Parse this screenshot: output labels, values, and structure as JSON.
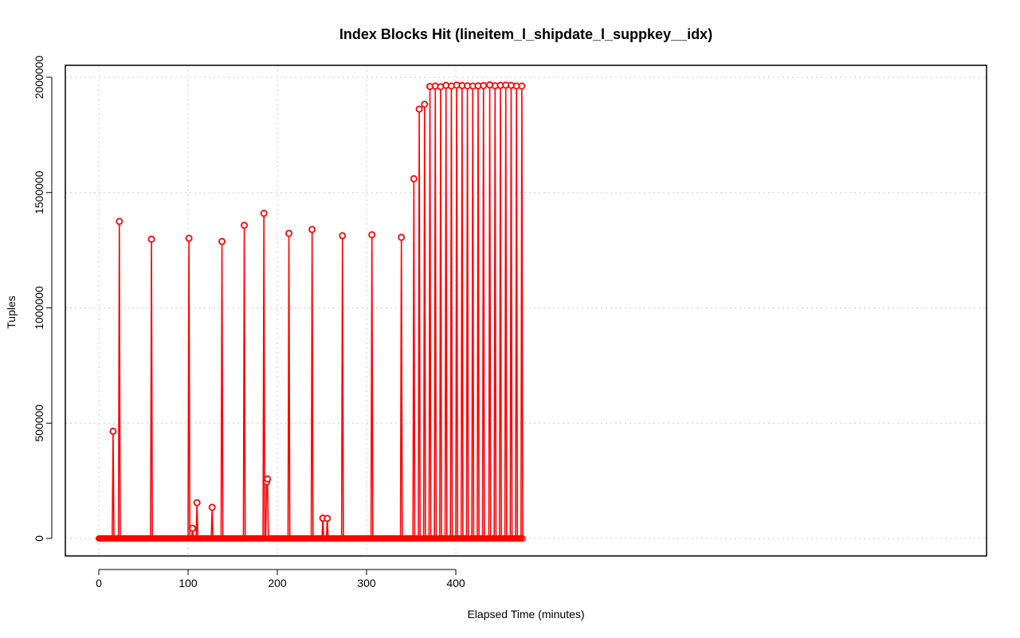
{
  "chart_data": {
    "type": "line",
    "style": "points-with-lines",
    "title": "Index Blocks Hit (lineitem_l_shipdate_l_suppkey__idx)",
    "xlabel": "Elapsed Time (minutes)",
    "ylabel": "Tuples",
    "xlim": [
      0,
      475
    ],
    "ylim": [
      0,
      2000000
    ],
    "xticks": [
      0,
      100,
      200,
      300,
      400
    ],
    "yticks": [
      0,
      500000,
      1000000,
      1500000,
      2000000
    ],
    "xtick_labels": [
      "0",
      "100",
      "200",
      "300",
      "400"
    ],
    "ytick_labels": [
      "0",
      "500000",
      "1000000",
      "1500000",
      "2000000"
    ],
    "grid": true,
    "legend": "none",
    "baseline_value": 0,
    "sample_interval_minutes": 1,
    "series": [
      {
        "color": "#ff0000",
        "peaks": [
          {
            "x": 16,
            "y": 465000
          },
          {
            "x": 23,
            "y": 1375000
          },
          {
            "x": 59,
            "y": 1298000
          },
          {
            "x": 101,
            "y": 1302000
          },
          {
            "x": 105,
            "y": 44000
          },
          {
            "x": 110,
            "y": 155000
          },
          {
            "x": 127,
            "y": 135000
          },
          {
            "x": 138,
            "y": 1288000
          },
          {
            "x": 163,
            "y": 1358000
          },
          {
            "x": 185,
            "y": 1410000
          },
          {
            "x": 188,
            "y": 245000
          },
          {
            "x": 189,
            "y": 258000
          },
          {
            "x": 213,
            "y": 1323000
          },
          {
            "x": 239,
            "y": 1340000
          },
          {
            "x": 251,
            "y": 88000
          },
          {
            "x": 256,
            "y": 87000
          },
          {
            "x": 273,
            "y": 1313000
          },
          {
            "x": 306,
            "y": 1317000
          },
          {
            "x": 339,
            "y": 1306000
          },
          {
            "x": 353,
            "y": 1560000
          },
          {
            "x": 359,
            "y": 1862000
          },
          {
            "x": 365,
            "y": 1883000
          },
          {
            "x": 371,
            "y": 1960000
          },
          {
            "x": 377,
            "y": 1962000
          },
          {
            "x": 383,
            "y": 1959000
          },
          {
            "x": 389,
            "y": 1965000
          },
          {
            "x": 395,
            "y": 1962000
          },
          {
            "x": 401,
            "y": 1966000
          },
          {
            "x": 407,
            "y": 1964000
          },
          {
            "x": 413,
            "y": 1963000
          },
          {
            "x": 419,
            "y": 1962000
          },
          {
            "x": 425,
            "y": 1963000
          },
          {
            "x": 431,
            "y": 1964000
          },
          {
            "x": 438,
            "y": 1967000
          },
          {
            "x": 444,
            "y": 1963000
          },
          {
            "x": 450,
            "y": 1965000
          },
          {
            "x": 456,
            "y": 1966000
          },
          {
            "x": 462,
            "y": 1965000
          },
          {
            "x": 468,
            "y": 1962000
          },
          {
            "x": 474,
            "y": 1962000
          }
        ]
      }
    ]
  }
}
